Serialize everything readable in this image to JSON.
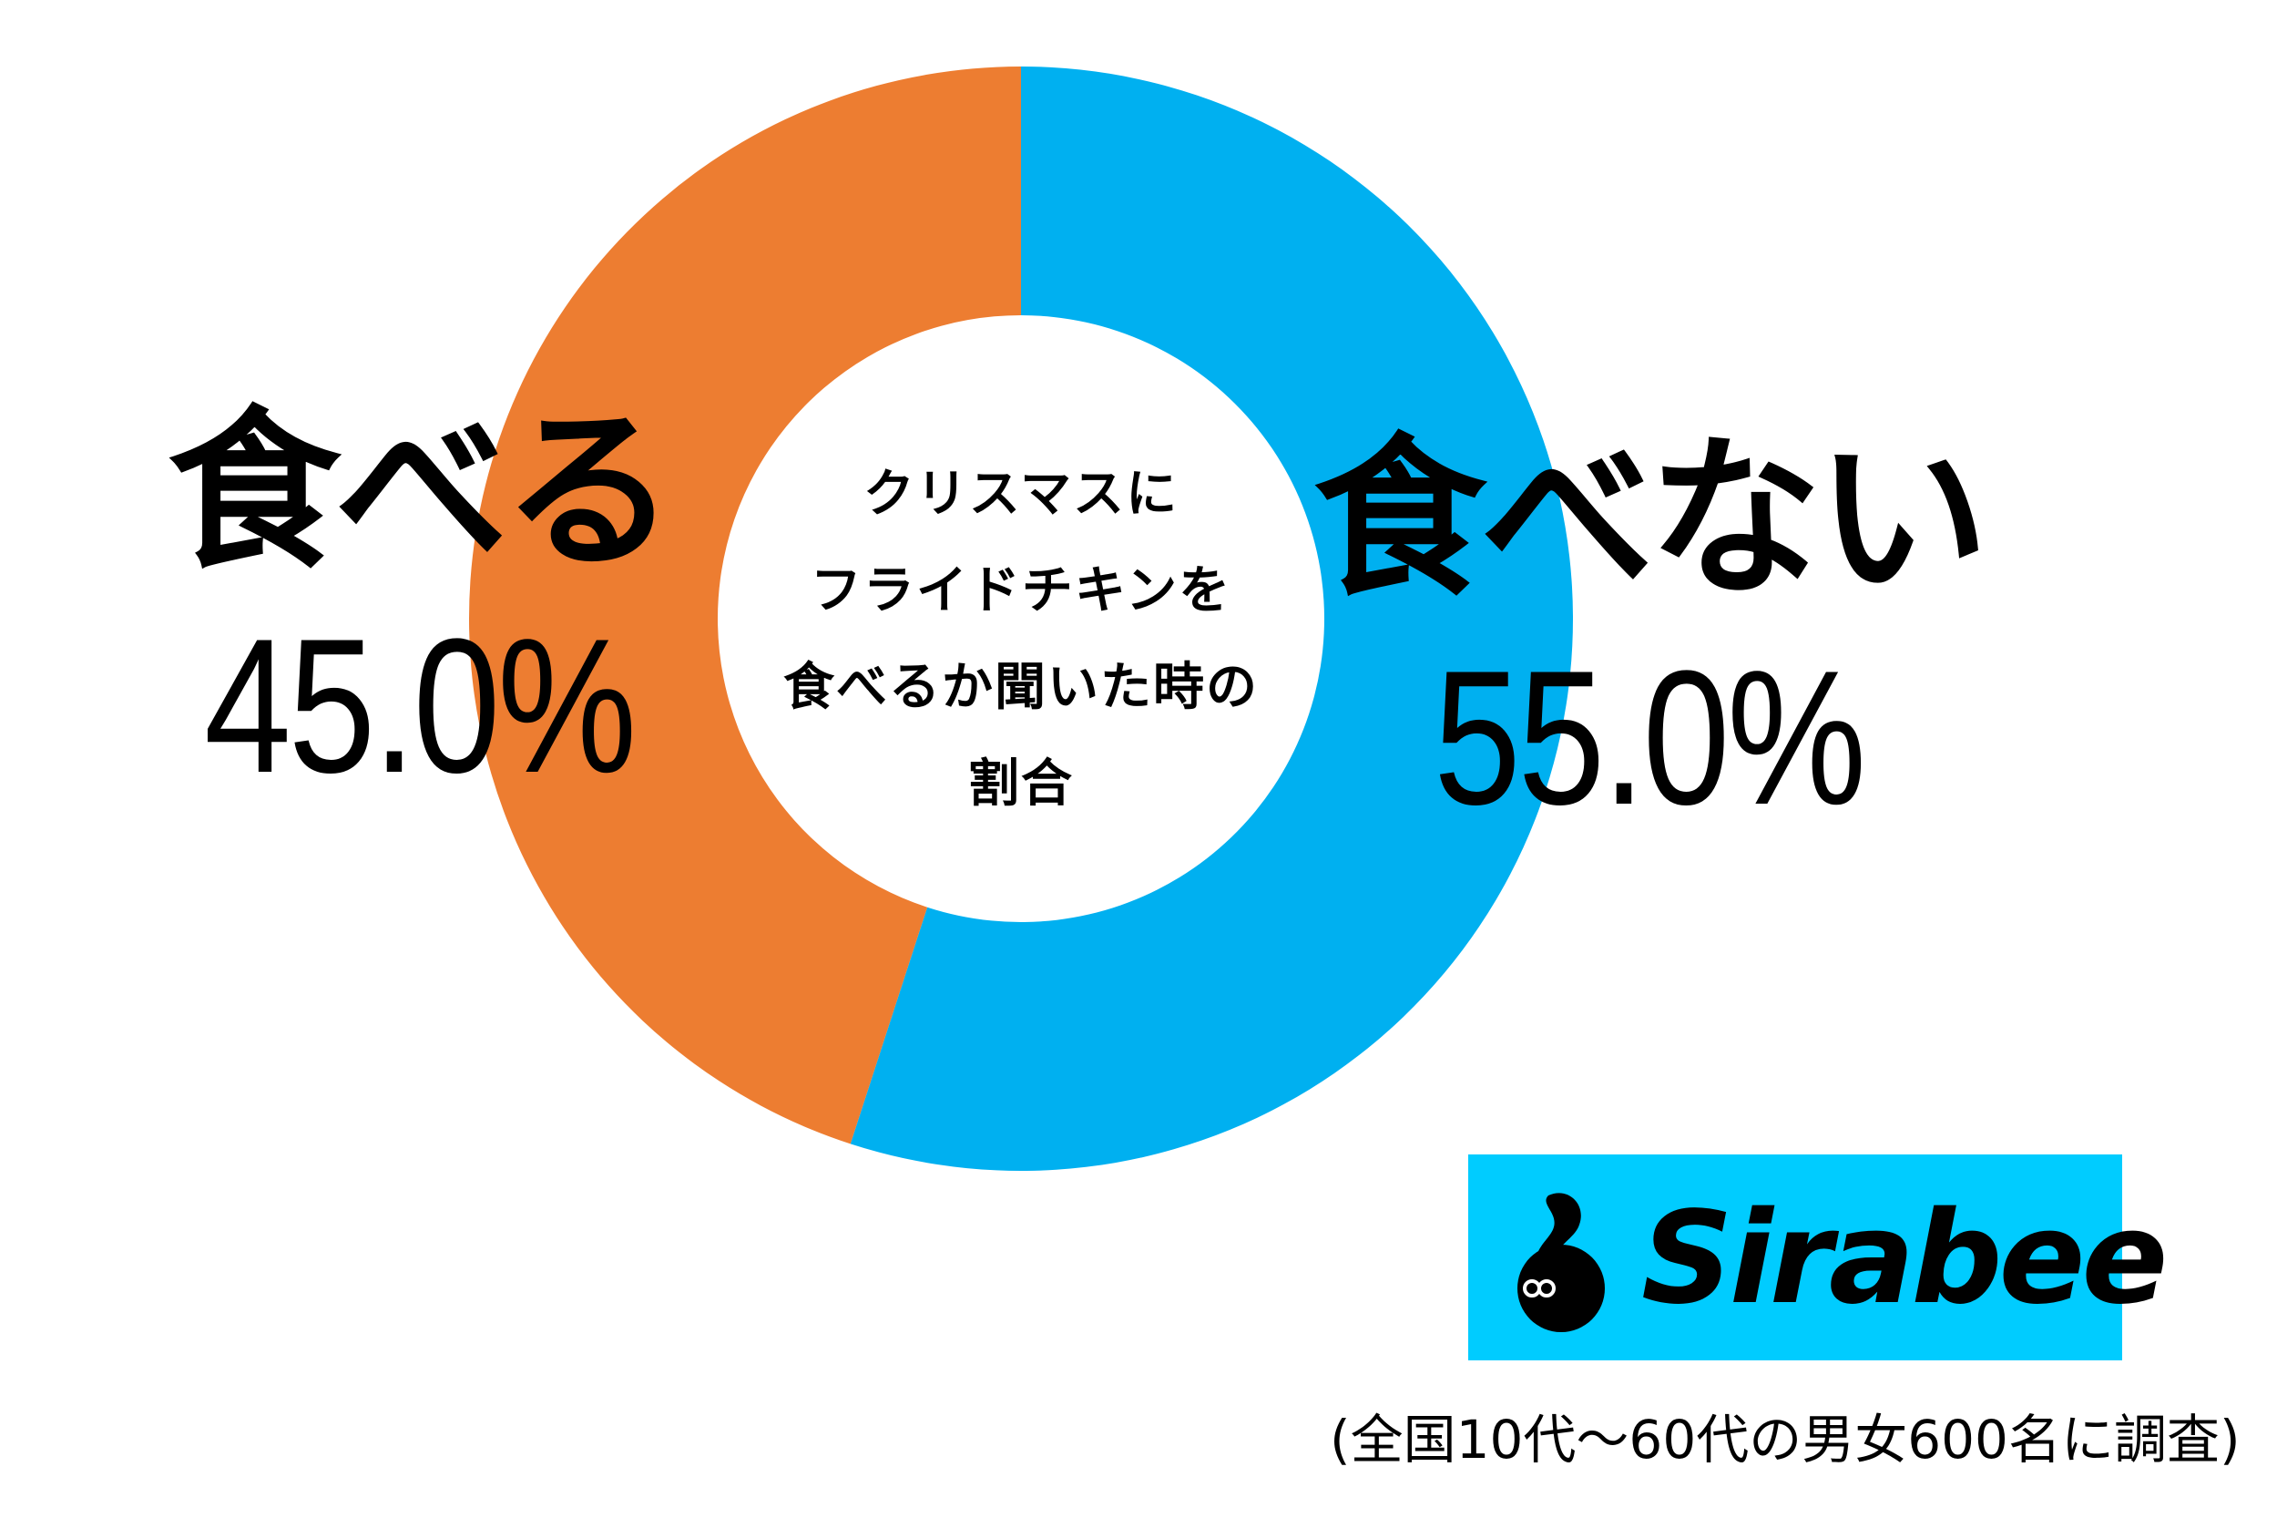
{
  "chart_data": {
    "type": "pie",
    "variant": "donut",
    "title": "クリスマスにフライドチキンを食べるか聞いた時の割合",
    "categories": [
      "食べない",
      "食べる"
    ],
    "values": [
      55.0,
      45.0
    ],
    "unit": "%",
    "colors": [
      "#00B0F0",
      "#ED7D31"
    ],
    "start_angle": "12 o'clock",
    "direction": "clockwise",
    "legend": "none (direct labels)",
    "note": "(全国10代～60代の男女600名に調査)"
  },
  "center": {
    "title_lines": [
      "クリスマスに",
      "フライドチキンを",
      "食べるか聞いた時の",
      "割合"
    ]
  },
  "labels": {
    "left": {
      "name": "食べる",
      "value": "45.0%"
    },
    "right": {
      "name": "食べない",
      "value": "55.0%"
    }
  },
  "colors": {
    "eat": "#ED7D31",
    "not_eat": "#00B0F0",
    "logo_bg": "#00CCFF",
    "background": "#FFFFFF"
  },
  "logo": {
    "text": "Sirabee",
    "icon": "sirabee-mascot-icon"
  },
  "footnote": "(全国10代～60代の男女600名に調査)"
}
